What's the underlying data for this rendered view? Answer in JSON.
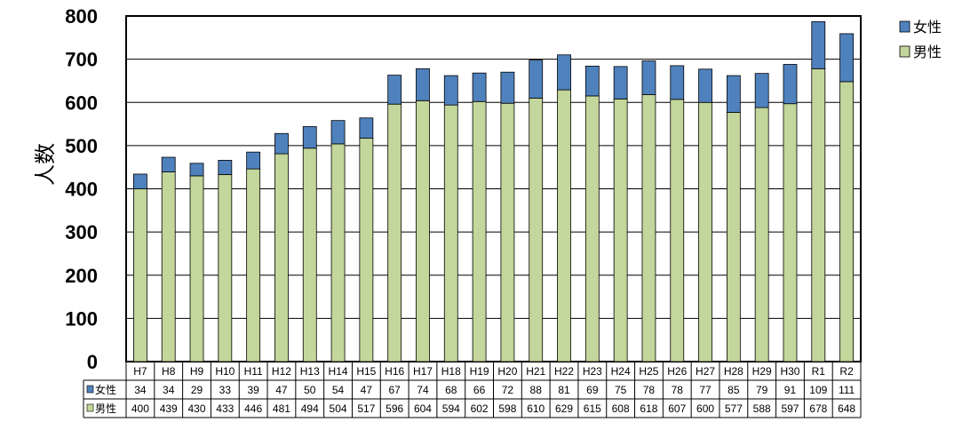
{
  "chart_data": {
    "type": "bar",
    "stacked": true,
    "title": "",
    "ylabel": "人数",
    "xlabel": "",
    "ylim": [
      0,
      800
    ],
    "yticks": [
      0,
      100,
      200,
      300,
      400,
      500,
      600,
      700,
      800
    ],
    "grid": true,
    "legend_position": "top-right",
    "categories": [
      "H7",
      "H8",
      "H9",
      "H10",
      "H11",
      "H12",
      "H13",
      "H14",
      "H15",
      "H16",
      "H17",
      "H18",
      "H19",
      "H20",
      "H21",
      "H22",
      "H23",
      "H24",
      "H25",
      "H26",
      "H27",
      "H28",
      "H29",
      "H30",
      "R1",
      "R2"
    ],
    "series": [
      {
        "name": "男性",
        "color": "#c3d69b",
        "values": [
          400,
          439,
          430,
          433,
          446,
          481,
          494,
          504,
          517,
          596,
          604,
          594,
          602,
          598,
          610,
          629,
          615,
          608,
          618,
          607,
          600,
          577,
          588,
          597,
          678,
          648
        ]
      },
      {
        "name": "女性",
        "color": "#4f81bd",
        "values": [
          34,
          34,
          29,
          33,
          39,
          47,
          50,
          54,
          47,
          67,
          74,
          68,
          66,
          72,
          88,
          81,
          69,
          75,
          78,
          78,
          77,
          85,
          79,
          91,
          109,
          111
        ]
      }
    ]
  }
}
